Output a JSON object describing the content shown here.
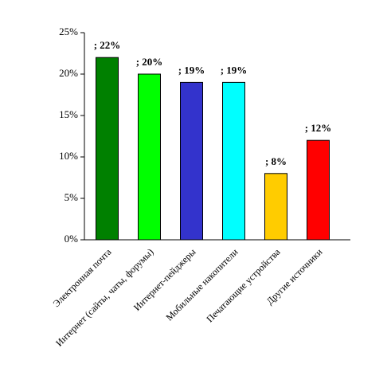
{
  "chart_data": {
    "type": "bar",
    "categories": [
      "Электронная почта",
      "Интернет (сайты, чаты, форумы)",
      "Интернет-пейджеры",
      "Мобильные накопители",
      "Печатающие устройства",
      "Другие источники"
    ],
    "values": [
      22,
      20,
      19,
      19,
      8,
      12
    ],
    "value_labels": [
      "; 22%",
      "; 20%",
      "; 19%",
      "; 19%",
      "; 8%",
      "; 12%"
    ],
    "colors": [
      "#008000",
      "#00ff00",
      "#3333cc",
      "#00ffff",
      "#ffcc00",
      "#ff0000"
    ],
    "ylim": [
      0,
      25
    ],
    "yticks": [
      {
        "value": 0,
        "label": "0%"
      },
      {
        "value": 5,
        "label": "5%"
      },
      {
        "value": 10,
        "label": "10%"
      },
      {
        "value": 15,
        "label": "15%"
      },
      {
        "value": 20,
        "label": "20%"
      },
      {
        "value": 25,
        "label": "25%"
      }
    ]
  }
}
